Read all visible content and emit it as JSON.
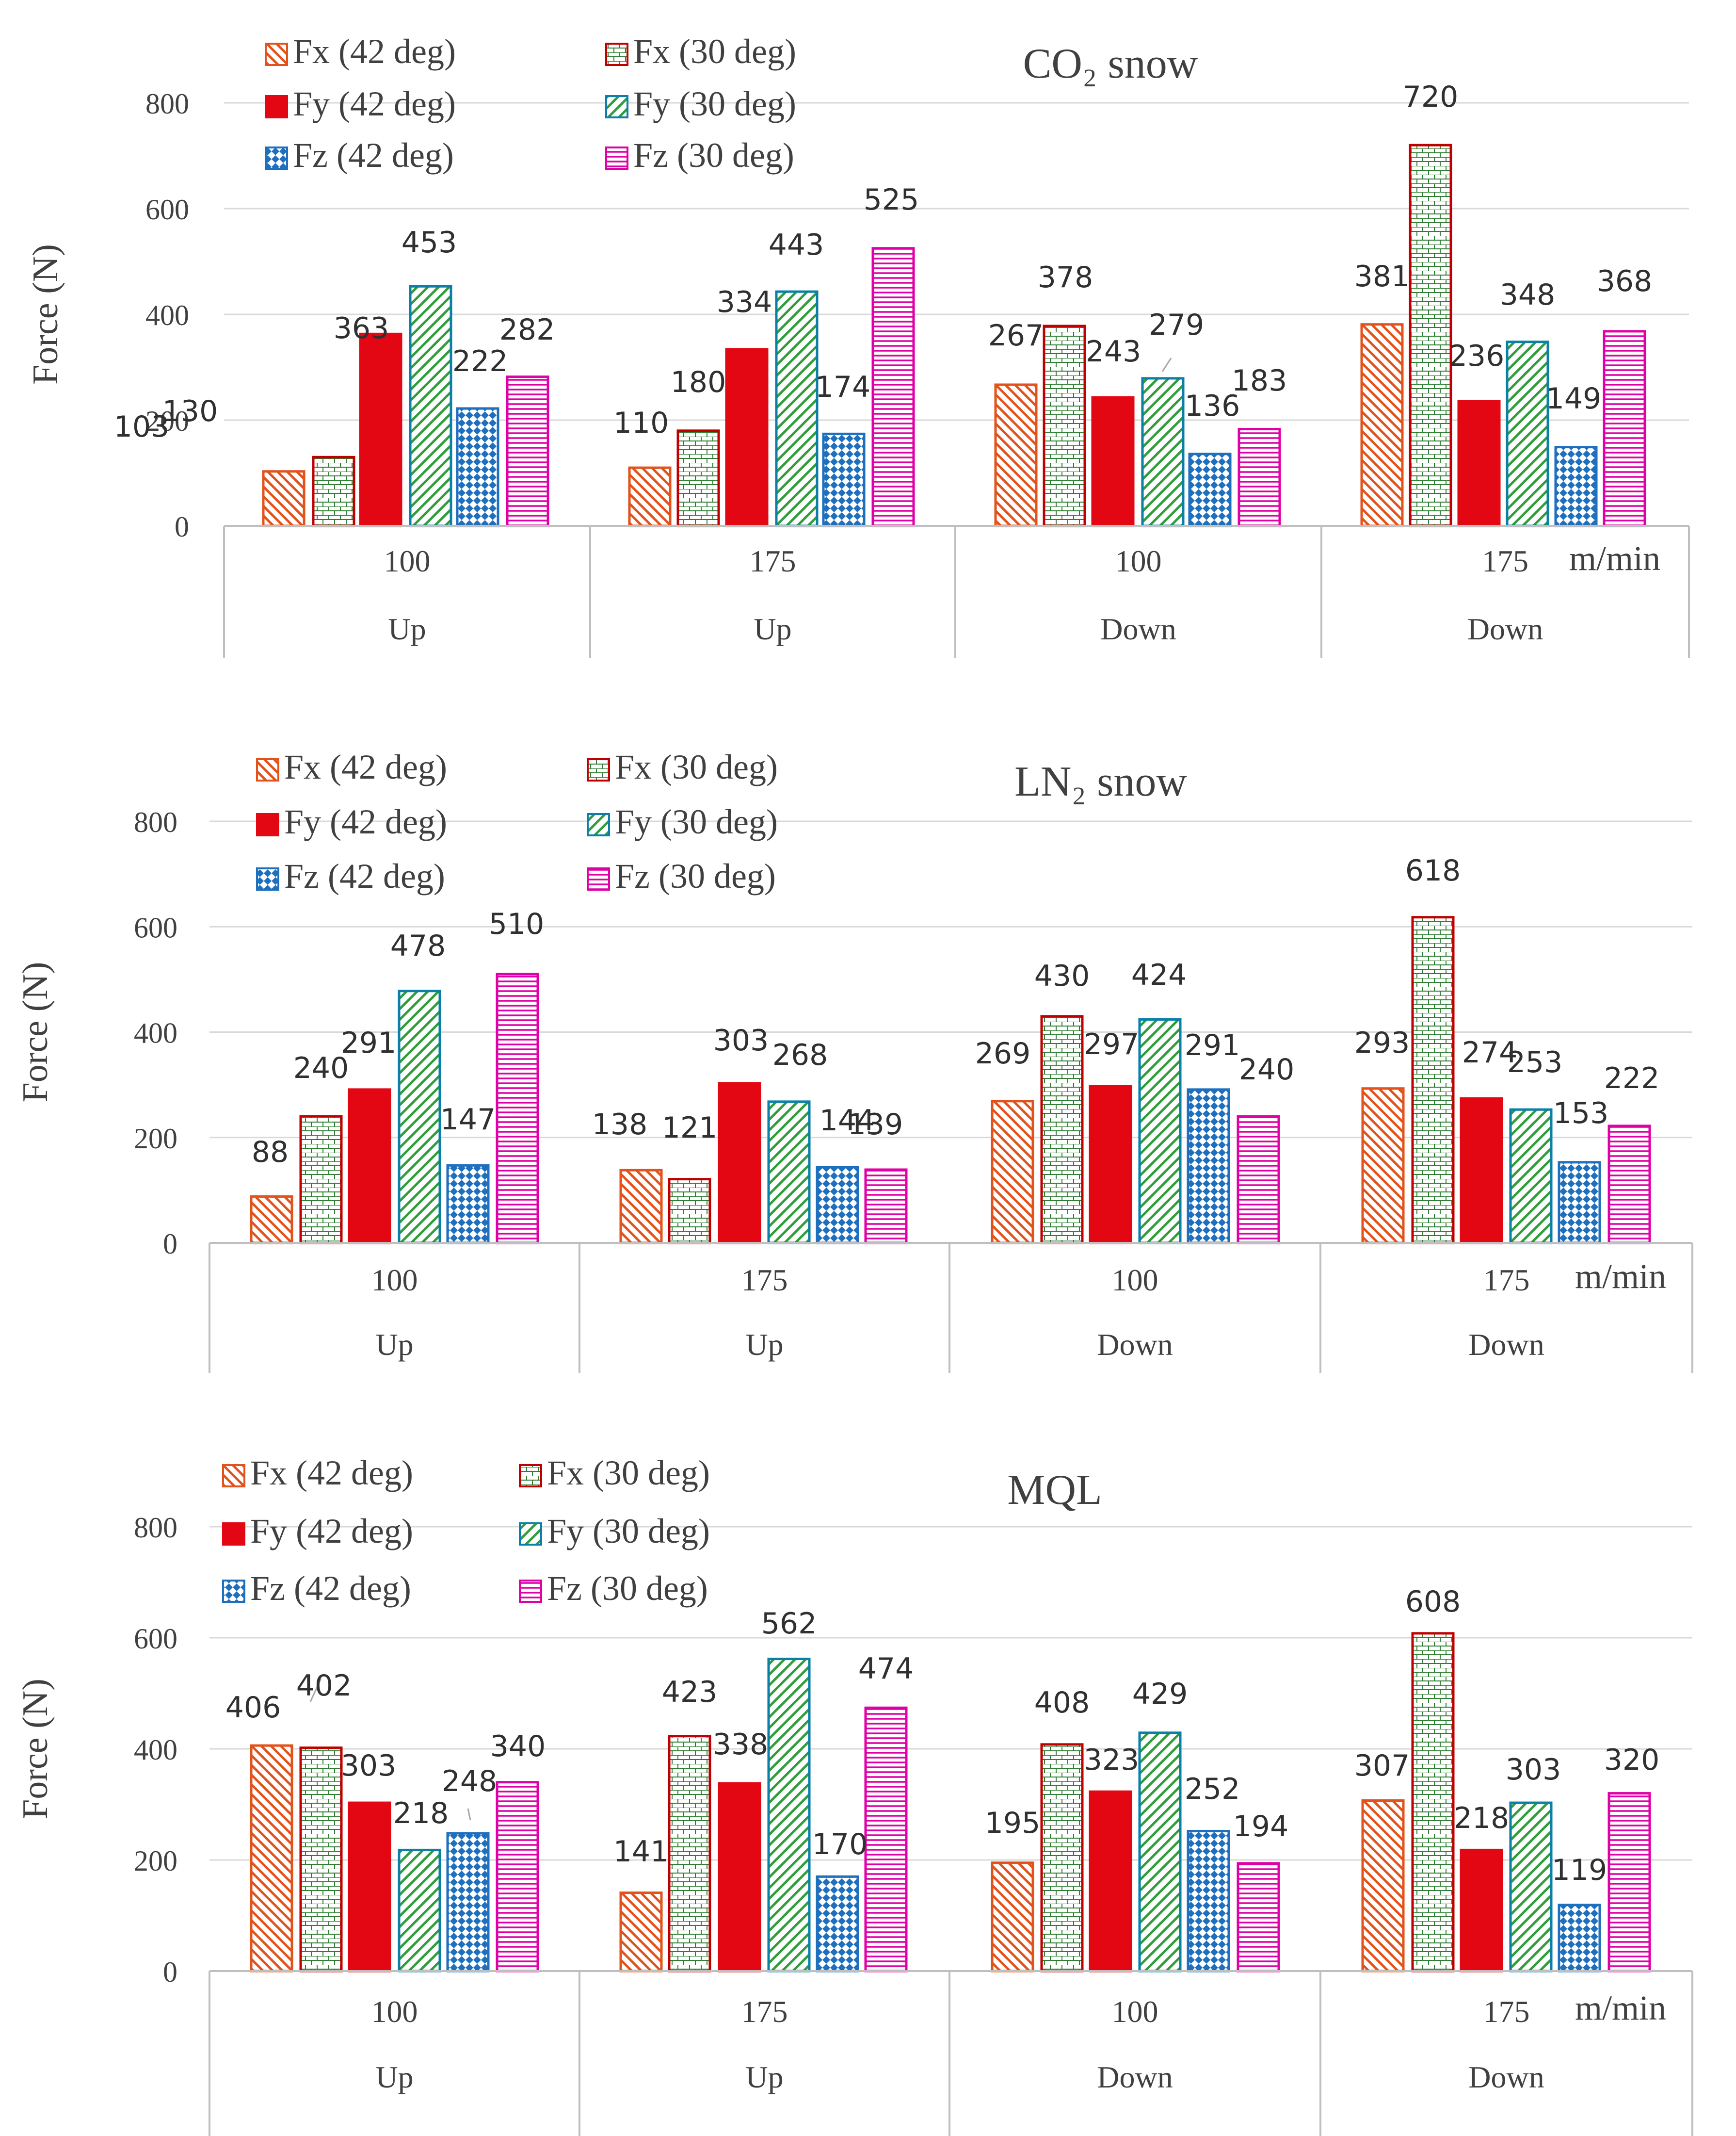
{
  "legend_items": [
    {
      "key": "fx42",
      "label": "Fx (42 deg)",
      "stroke": "#e2531c",
      "fill": "#ffffff",
      "pattern": "diag-back"
    },
    {
      "key": "fx30",
      "label": "Fx (30 deg)",
      "stroke": "#c00000",
      "fill": "#ffffff",
      "pattern": "brick"
    },
    {
      "key": "fy42",
      "label": "Fy (42 deg)",
      "stroke": "#e30613",
      "fill": "#e30613",
      "pattern": "solid"
    },
    {
      "key": "fy30",
      "label": "Fy (30 deg)",
      "stroke": "#0a7fa8",
      "fill": "#ffffff",
      "pattern": "diag-fwd"
    },
    {
      "key": "fz42",
      "label": "Fz (42 deg)",
      "stroke": "#1f6fbf",
      "fill": "#ffffff",
      "pattern": "checker"
    },
    {
      "key": "fz30",
      "label": "Fz (30 deg)",
      "stroke": "#e000a8",
      "fill": "#ffffff",
      "pattern": "hlines"
    }
  ],
  "colors": {
    "gridline": "#d9d9d9",
    "axis": "#bfbfbf",
    "text": "#404040",
    "label_text": "#303030",
    "brick_line": "#2e7d32",
    "diag_green": "#2e9d3a",
    "diag_orange": "#e2531c",
    "checker_blue": "#1f6fbf",
    "hline_magenta": "#e000a8"
  },
  "chart_data": [
    {
      "type": "bar",
      "title": "CO₂ snow",
      "ylabel": "Force (N)",
      "xlabel": "",
      "ylim": [
        0,
        800
      ],
      "yticks": [
        0,
        200,
        400,
        600,
        800
      ],
      "unit_label": "m/min",
      "categories": [
        "100",
        "175",
        "100",
        "175"
      ],
      "category_groups": [
        "Up",
        "Up",
        "Down",
        "Down"
      ],
      "series": [
        {
          "name": "Fx (42 deg)",
          "values": [
            103,
            110,
            267,
            381
          ]
        },
        {
          "name": "Fx (30 deg)",
          "values": [
            130,
            180,
            378,
            720
          ]
        },
        {
          "name": "Fy (42 deg)",
          "values": [
            363,
            334,
            243,
            236
          ]
        },
        {
          "name": "Fy (30 deg)",
          "values": [
            453,
            443,
            279,
            348
          ]
        },
        {
          "name": "Fz (42 deg)",
          "values": [
            222,
            174,
            136,
            149
          ]
        },
        {
          "name": "Fz (30 deg)",
          "values": [
            282,
            525,
            183,
            368
          ]
        }
      ]
    },
    {
      "type": "bar",
      "title": "LN₂ snow",
      "ylabel": "Force (N)",
      "xlabel": "",
      "ylim": [
        0,
        800
      ],
      "yticks": [
        0,
        200,
        400,
        600,
        800
      ],
      "unit_label": "m/min",
      "categories": [
        "100",
        "175",
        "100",
        "175"
      ],
      "category_groups": [
        "Up",
        "Up",
        "Down",
        "Down"
      ],
      "series": [
        {
          "name": "Fx (42 deg)",
          "values": [
            88,
            138,
            269,
            293
          ]
        },
        {
          "name": "Fx (30 deg)",
          "values": [
            240,
            121,
            430,
            618
          ]
        },
        {
          "name": "Fy (42 deg)",
          "values": [
            291,
            303,
            297,
            274
          ]
        },
        {
          "name": "Fy (30 deg)",
          "values": [
            478,
            268,
            424,
            253
          ]
        },
        {
          "name": "Fz (42 deg)",
          "values": [
            147,
            144,
            291,
            153
          ]
        },
        {
          "name": "Fz (30 deg)",
          "values": [
            510,
            139,
            240,
            222
          ]
        }
      ]
    },
    {
      "type": "bar",
      "title": "MQL",
      "ylabel": "Force (N)",
      "xlabel": "",
      "ylim": [
        0,
        800
      ],
      "yticks": [
        0,
        200,
        400,
        600,
        800
      ],
      "unit_label": "m/min",
      "categories": [
        "100",
        "175",
        "100",
        "175"
      ],
      "category_groups": [
        "Up",
        "Up",
        "Down",
        "Down"
      ],
      "series": [
        {
          "name": "Fx (42 deg)",
          "values": [
            406,
            141,
            195,
            307
          ]
        },
        {
          "name": "Fx (30 deg)",
          "values": [
            402,
            423,
            408,
            608
          ]
        },
        {
          "name": "Fy (42 deg)",
          "values": [
            303,
            338,
            323,
            218
          ]
        },
        {
          "name": "Fy (30 deg)",
          "values": [
            218,
            562,
            429,
            303
          ]
        },
        {
          "name": "Fz (42 deg)",
          "values": [
            248,
            170,
            252,
            119
          ]
        },
        {
          "name": "Fz (30 deg)",
          "values": [
            340,
            474,
            194,
            320
          ]
        }
      ]
    }
  ]
}
